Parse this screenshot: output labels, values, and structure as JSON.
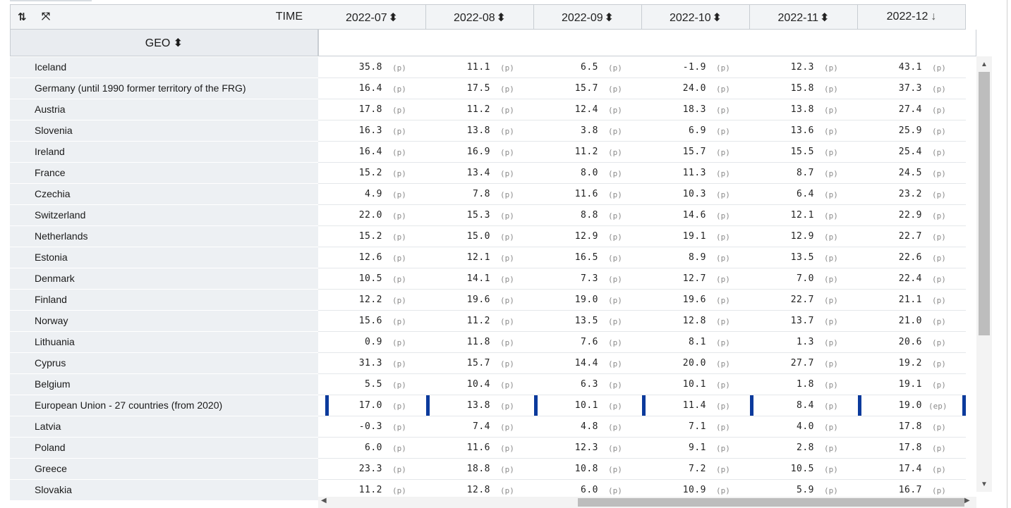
{
  "header": {
    "swap_icon": "⇅",
    "expand_icon": "⤧",
    "time_label": "TIME",
    "geo_label": "GEO",
    "sort_glyph": "⬍",
    "sort_desc_glyph": "↓"
  },
  "columns": [
    "2022-07",
    "2022-08",
    "2022-09",
    "2022-10",
    "2022-11",
    "2022-12"
  ],
  "active_sort_column": "2022-12",
  "highlight_color": "#0b3a9c",
  "rows": [
    {
      "geo": "Iceland",
      "values": [
        "35.8",
        "11.1",
        "6.5",
        "-1.9",
        "12.3",
        "43.1"
      ],
      "flags": [
        "(p)",
        "(p)",
        "(p)",
        "(p)",
        "(p)",
        "(p)"
      ]
    },
    {
      "geo": "Germany (until 1990 former territory of the FRG)",
      "values": [
        "16.4",
        "17.5",
        "15.7",
        "24.0",
        "15.8",
        "37.3"
      ],
      "flags": [
        "(p)",
        "(p)",
        "(p)",
        "(p)",
        "(p)",
        "(p)"
      ]
    },
    {
      "geo": "Austria",
      "values": [
        "17.8",
        "11.2",
        "12.4",
        "18.3",
        "13.8",
        "27.4"
      ],
      "flags": [
        "(p)",
        "(p)",
        "(p)",
        "(p)",
        "(p)",
        "(p)"
      ]
    },
    {
      "geo": "Slovenia",
      "values": [
        "16.3",
        "13.8",
        "3.8",
        "6.9",
        "13.6",
        "25.9"
      ],
      "flags": [
        "(p)",
        "(p)",
        "(p)",
        "(p)",
        "(p)",
        "(p)"
      ]
    },
    {
      "geo": "Ireland",
      "values": [
        "16.4",
        "16.9",
        "11.2",
        "15.7",
        "15.5",
        "25.4"
      ],
      "flags": [
        "(p)",
        "(p)",
        "(p)",
        "(p)",
        "(p)",
        "(p)"
      ]
    },
    {
      "geo": "France",
      "values": [
        "15.2",
        "13.4",
        "8.0",
        "11.3",
        "8.7",
        "24.5"
      ],
      "flags": [
        "(p)",
        "(p)",
        "(p)",
        "(p)",
        "(p)",
        "(p)"
      ]
    },
    {
      "geo": "Czechia",
      "values": [
        "4.9",
        "7.8",
        "11.6",
        "10.3",
        "6.4",
        "23.2"
      ],
      "flags": [
        "(p)",
        "(p)",
        "(p)",
        "(p)",
        "(p)",
        "(p)"
      ]
    },
    {
      "geo": "Switzerland",
      "values": [
        "22.0",
        "15.3",
        "8.8",
        "14.6",
        "12.1",
        "22.9"
      ],
      "flags": [
        "(p)",
        "(p)",
        "(p)",
        "(p)",
        "(p)",
        "(p)"
      ]
    },
    {
      "geo": "Netherlands",
      "values": [
        "15.2",
        "15.0",
        "12.9",
        "19.1",
        "12.9",
        "22.7"
      ],
      "flags": [
        "(p)",
        "(p)",
        "(p)",
        "(p)",
        "(p)",
        "(p)"
      ]
    },
    {
      "geo": "Estonia",
      "values": [
        "12.6",
        "12.1",
        "16.5",
        "8.9",
        "13.5",
        "22.6"
      ],
      "flags": [
        "(p)",
        "(p)",
        "(p)",
        "(p)",
        "(p)",
        "(p)"
      ]
    },
    {
      "geo": "Denmark",
      "values": [
        "10.5",
        "14.1",
        "7.3",
        "12.7",
        "7.0",
        "22.4"
      ],
      "flags": [
        "(p)",
        "(p)",
        "(p)",
        "(p)",
        "(p)",
        "(p)"
      ]
    },
    {
      "geo": "Finland",
      "values": [
        "12.2",
        "19.6",
        "19.0",
        "19.6",
        "22.7",
        "21.1"
      ],
      "flags": [
        "(p)",
        "(p)",
        "(p)",
        "(p)",
        "(p)",
        "(p)"
      ]
    },
    {
      "geo": "Norway",
      "values": [
        "15.6",
        "11.2",
        "13.5",
        "12.8",
        "13.7",
        "21.0"
      ],
      "flags": [
        "(p)",
        "(p)",
        "(p)",
        "(p)",
        "(p)",
        "(p)"
      ]
    },
    {
      "geo": "Lithuania",
      "values": [
        "0.9",
        "11.8",
        "7.6",
        "8.1",
        "1.3",
        "20.6"
      ],
      "flags": [
        "(p)",
        "(p)",
        "(p)",
        "(p)",
        "(p)",
        "(p)"
      ]
    },
    {
      "geo": "Cyprus",
      "values": [
        "31.3",
        "15.7",
        "14.4",
        "20.0",
        "27.7",
        "19.2"
      ],
      "flags": [
        "(p)",
        "(p)",
        "(p)",
        "(p)",
        "(p)",
        "(p)"
      ]
    },
    {
      "geo": "Belgium",
      "values": [
        "5.5",
        "10.4",
        "6.3",
        "10.1",
        "1.8",
        "19.1"
      ],
      "flags": [
        "(p)",
        "(p)",
        "(p)",
        "(p)",
        "(p)",
        "(p)"
      ]
    },
    {
      "geo": "European Union - 27 countries (from 2020)",
      "highlight": true,
      "values": [
        "17.0",
        "13.8",
        "10.1",
        "11.4",
        "8.4",
        "19.0"
      ],
      "flags": [
        "(p)",
        "(p)",
        "(p)",
        "(p)",
        "(p)",
        "(ep)"
      ]
    },
    {
      "geo": "Latvia",
      "values": [
        "-0.3",
        "7.4",
        "4.8",
        "7.1",
        "4.0",
        "17.8"
      ],
      "flags": [
        "(p)",
        "(p)",
        "(p)",
        "(p)",
        "(p)",
        "(p)"
      ]
    },
    {
      "geo": "Poland",
      "values": [
        "6.0",
        "11.6",
        "12.3",
        "9.1",
        "2.8",
        "17.8"
      ],
      "flags": [
        "(p)",
        "(p)",
        "(p)",
        "(p)",
        "(p)",
        "(p)"
      ]
    },
    {
      "geo": "Greece",
      "values": [
        "23.3",
        "18.8",
        "10.8",
        "7.2",
        "10.5",
        "17.4"
      ],
      "flags": [
        "(p)",
        "(p)",
        "(p)",
        "(p)",
        "(p)",
        "(p)"
      ]
    },
    {
      "geo": "Slovakia",
      "values": [
        "11.2",
        "12.8",
        "6.0",
        "10.9",
        "5.9",
        "16.7"
      ],
      "flags": [
        "(p)",
        "(p)",
        "(p)",
        "(p)",
        "(p)",
        "(p)"
      ]
    }
  ],
  "scrollbars": {
    "up_arrow": "▲",
    "down_arrow": "▼",
    "left_arrow": "◀",
    "right_arrow": "▶"
  }
}
